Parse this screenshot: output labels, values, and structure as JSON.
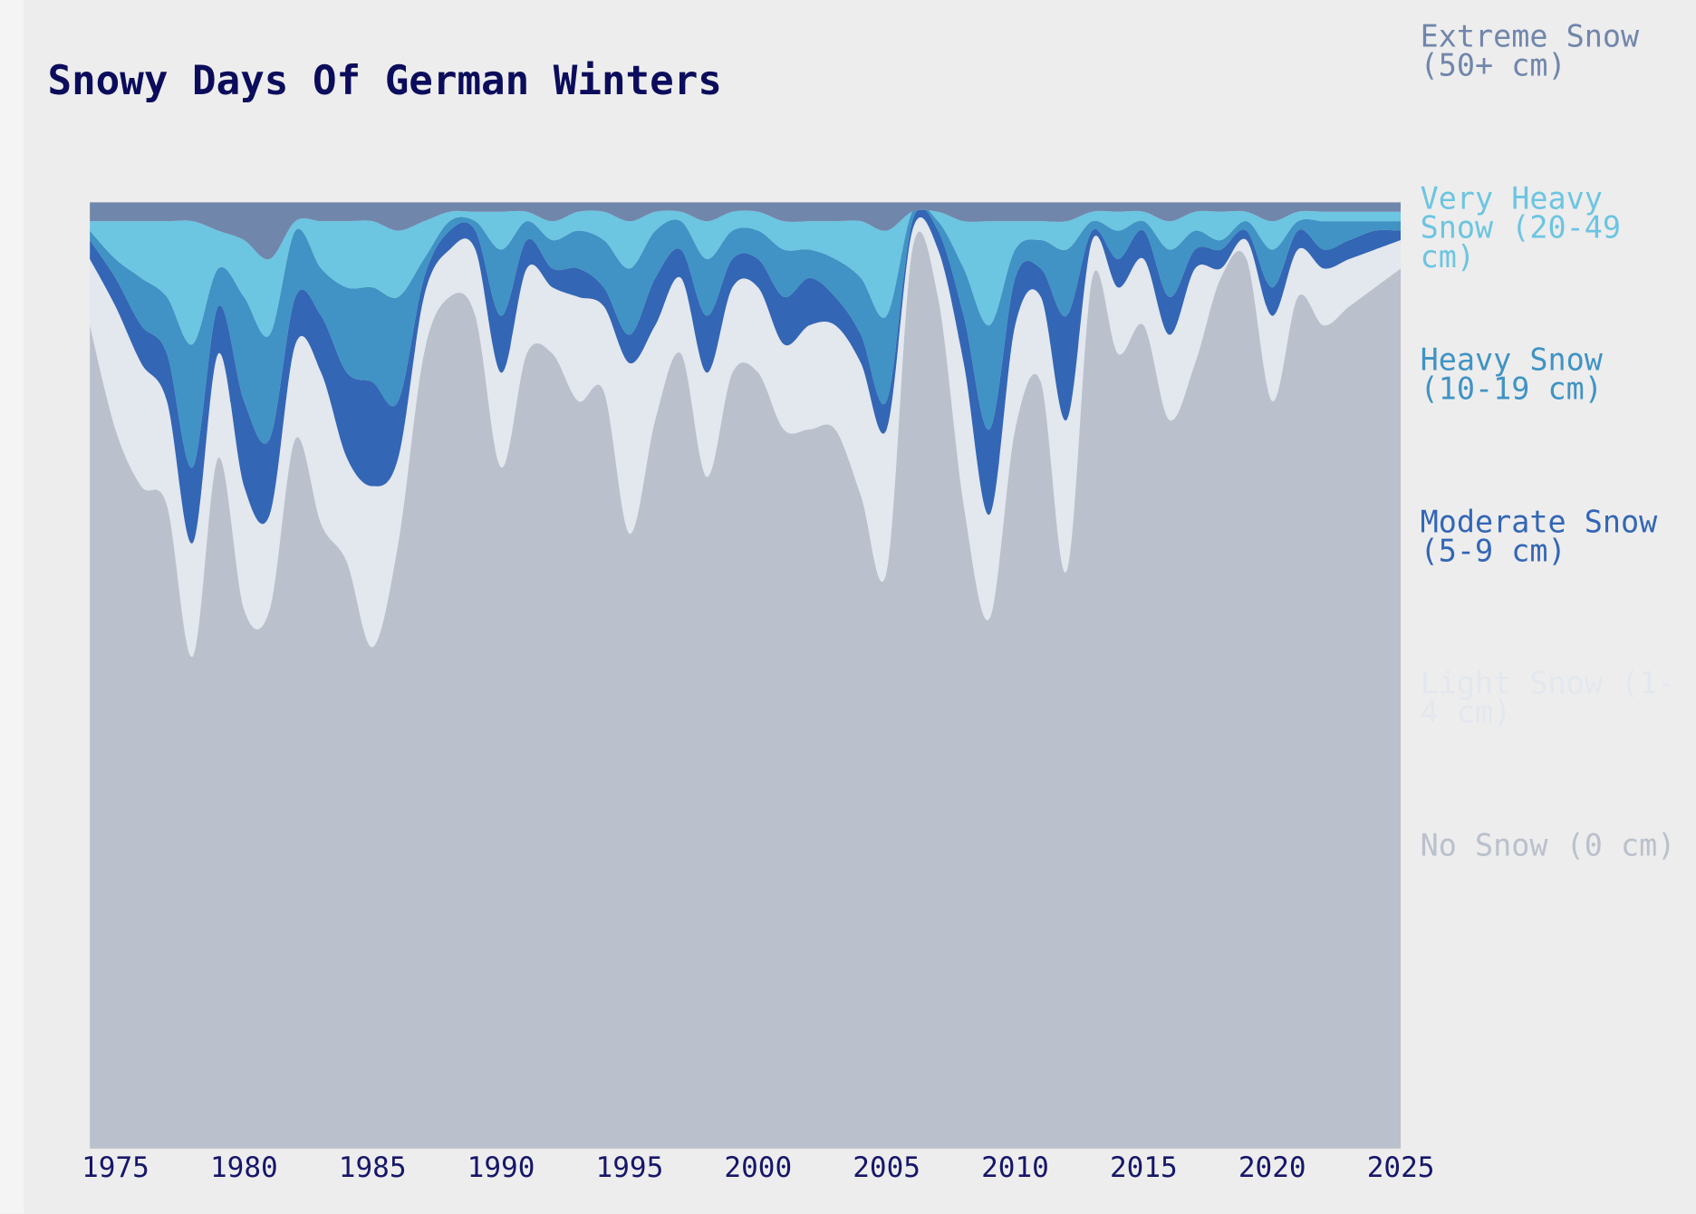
{
  "chart_data": {
    "type": "stacked_area",
    "title": "Snowy Days Of German Winters",
    "x": [
      1974,
      1975,
      1976,
      1977,
      1978,
      1979,
      1980,
      1981,
      1982,
      1983,
      1984,
      1985,
      1986,
      1987,
      1988,
      1989,
      1990,
      1991,
      1992,
      1993,
      1994,
      1995,
      1996,
      1997,
      1998,
      1999,
      2000,
      2001,
      2002,
      2003,
      2004,
      2005,
      2006,
      2007,
      2008,
      2009,
      2010,
      2011,
      2012,
      2013,
      2014,
      2015,
      2016,
      2017,
      2018,
      2019,
      2020,
      2021,
      2022,
      2023,
      2024,
      2025
    ],
    "xlim": [
      1974,
      2025
    ],
    "xticks": [
      1975,
      1980,
      1985,
      1990,
      1995,
      2000,
      2005,
      2010,
      2015,
      2020,
      2025
    ],
    "ylim": [
      0,
      100
    ],
    "series": [
      {
        "name": "No Snow (0 cm)",
        "color": "#bac1cc",
        "values": [
          87,
          76,
          70,
          68,
          52,
          73,
          57,
          57,
          75,
          66,
          62,
          53,
          64,
          84,
          90,
          88,
          72,
          84,
          84,
          79,
          80,
          65,
          77,
          84,
          71,
          82,
          82,
          76,
          76,
          76,
          69,
          61,
          95,
          90,
          68,
          56,
          76,
          81,
          61,
          92,
          84,
          87,
          77,
          83,
          92,
          94,
          79,
          90,
          87,
          89,
          91,
          93
        ]
      },
      {
        "name": "Light Snow (1-4 cm)",
        "color": "#e3e7ee",
        "values": [
          7,
          13,
          13,
          11,
          12,
          11,
          13,
          10,
          10,
          16,
          11,
          17,
          9,
          6,
          5,
          7,
          10,
          9,
          7,
          11,
          9,
          18,
          10,
          8,
          11,
          9,
          9,
          9,
          11,
          11,
          14,
          15,
          2,
          5,
          15,
          11,
          11,
          9,
          16,
          4,
          7,
          7,
          9,
          10,
          1,
          2,
          9,
          5,
          6,
          5,
          4,
          3
        ]
      },
      {
        "name": "Moderate Snow (5-9 cm)",
        "color": "#3366b5",
        "values": [
          2,
          3,
          4,
          5,
          8,
          5,
          9,
          8,
          5,
          6,
          9,
          11,
          6,
          2,
          2,
          2,
          6,
          3,
          2,
          3,
          2,
          3,
          5,
          3,
          6,
          3,
          3,
          5,
          5,
          3,
          3,
          3,
          1,
          2,
          5,
          9,
          5,
          3,
          11,
          1,
          3,
          3,
          4,
          2,
          2,
          1,
          3,
          2,
          2,
          2,
          2,
          1
        ]
      },
      {
        "name": "Heavy Snow (10-19 cm)",
        "color": "#4093c4",
        "values": [
          1,
          2,
          5,
          6,
          13,
          4,
          11,
          11,
          7,
          5,
          9,
          10,
          11,
          2,
          1,
          1,
          7,
          2,
          3,
          4,
          5,
          7,
          5,
          3,
          6,
          3,
          3,
          5,
          3,
          4,
          6,
          9,
          1,
          1,
          5,
          11,
          3,
          3,
          7,
          1,
          3,
          1,
          5,
          2,
          1,
          1,
          4,
          1,
          3,
          2,
          1,
          1
        ]
      },
      {
        "name": "Very Heavy Snow (20-49 cm)",
        "color": "#6cc5e1",
        "values": [
          1,
          4,
          6,
          8,
          13,
          4,
          6,
          8,
          1,
          5,
          7,
          7,
          7,
          4,
          1,
          1,
          4,
          1,
          2,
          2,
          3,
          5,
          2,
          1,
          4,
          2,
          2,
          3,
          3,
          4,
          6,
          9,
          0,
          1,
          5,
          11,
          3,
          2,
          3,
          1,
          2,
          1,
          3,
          2,
          3,
          1,
          3,
          1,
          1,
          1,
          1,
          1
        ]
      },
      {
        "name": "Extreme Snow (50+ cm)",
        "color": "#7186ab",
        "values": [
          2,
          2,
          2,
          2,
          2,
          3,
          4,
          6,
          2,
          2,
          2,
          2,
          3,
          2,
          1,
          1,
          1,
          1,
          2,
          1,
          1,
          2,
          1,
          1,
          2,
          1,
          1,
          2,
          2,
          2,
          2,
          3,
          1,
          1,
          2,
          2,
          2,
          2,
          2,
          1,
          1,
          1,
          2,
          1,
          1,
          1,
          2,
          1,
          1,
          1,
          1,
          1
        ]
      }
    ]
  }
}
